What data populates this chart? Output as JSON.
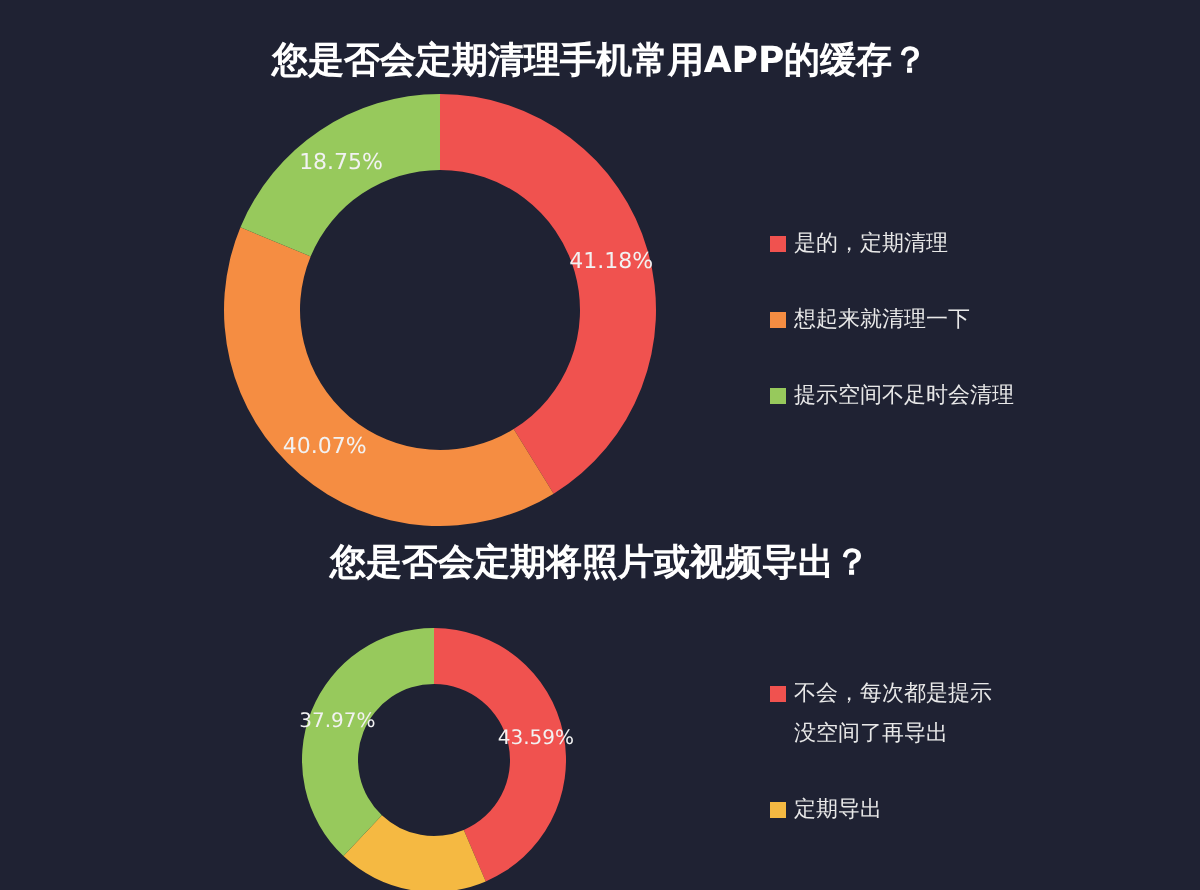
{
  "chart_data": [
    {
      "type": "donut",
      "title": "您是否会定期清理手机常用APP的缓存？",
      "categories": [
        "是的，定期清理",
        "想起来就清理一下",
        "提示空间不足时会清理"
      ],
      "values": [
        41.18,
        40.07,
        18.75
      ],
      "colors": [
        "#f0524f",
        "#f58d42",
        "#97c95c"
      ],
      "value_labels": [
        "41.18%",
        "40.07%",
        "18.75%"
      ],
      "legend": "right"
    },
    {
      "type": "donut",
      "title": "您是否会定期将照片或视频导出？",
      "categories": [
        "不会，每次都是提示没空间了再导出",
        "定期导出",
        null
      ],
      "values": [
        43.59,
        18.44,
        37.97
      ],
      "colors": [
        "#f0524f",
        "#f5b942",
        "#97c95c"
      ],
      "value_labels": [
        "43.59%",
        null,
        "37.97%"
      ],
      "legend": "right"
    }
  ]
}
